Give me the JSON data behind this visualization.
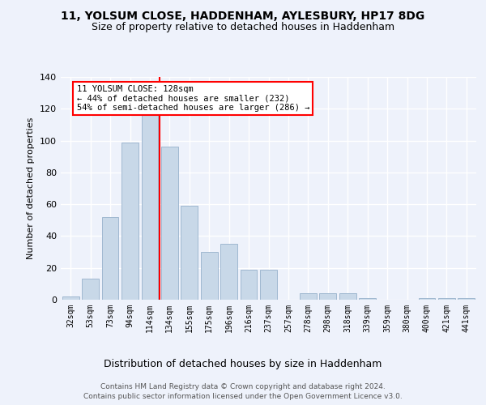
{
  "title1": "11, YOLSUM CLOSE, HADDENHAM, AYLESBURY, HP17 8DG",
  "title2": "Size of property relative to detached houses in Haddenham",
  "xlabel": "Distribution of detached houses by size in Haddenham",
  "ylabel": "Number of detached properties",
  "categories": [
    "32sqm",
    "53sqm",
    "73sqm",
    "94sqm",
    "114sqm",
    "134sqm",
    "155sqm",
    "175sqm",
    "196sqm",
    "216sqm",
    "237sqm",
    "257sqm",
    "278sqm",
    "298sqm",
    "318sqm",
    "339sqm",
    "359sqm",
    "380sqm",
    "400sqm",
    "421sqm",
    "441sqm"
  ],
  "values": [
    2,
    13,
    52,
    99,
    117,
    96,
    59,
    30,
    35,
    19,
    19,
    0,
    4,
    4,
    4,
    1,
    0,
    0,
    1,
    1,
    1
  ],
  "bar_color": "#c8d8e8",
  "bar_edge_color": "#a0b8d0",
  "red_line_x": 4.5,
  "annotation_title": "11 YOLSUM CLOSE: 128sqm",
  "annotation_line1": "← 44% of detached houses are smaller (232)",
  "annotation_line2": "54% of semi-detached houses are larger (286) →",
  "ylim": [
    0,
    140
  ],
  "yticks": [
    0,
    20,
    40,
    60,
    80,
    100,
    120,
    140
  ],
  "footer1": "Contains HM Land Registry data © Crown copyright and database right 2024.",
  "footer2": "Contains public sector information licensed under the Open Government Licence v3.0.",
  "bg_color": "#eef2fb",
  "plot_bg_color": "#eef2fb",
  "grid_color": "#ffffff",
  "title_fontsize": 10,
  "subtitle_fontsize": 9,
  "ylabel_fontsize": 8,
  "xlabel_fontsize": 9,
  "tick_fontsize": 7,
  "footer_fontsize": 6.5,
  "ann_fontsize": 7.5
}
